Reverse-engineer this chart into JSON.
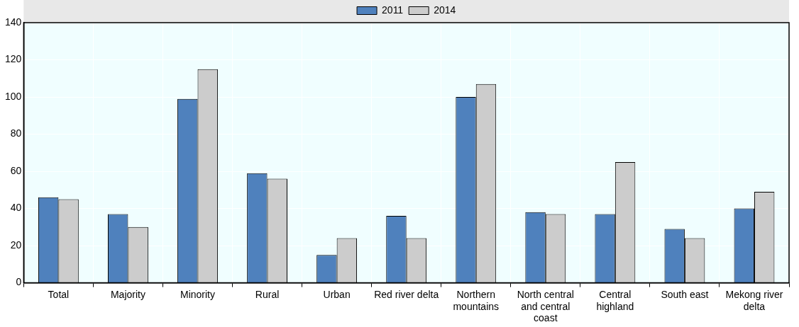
{
  "chart_data": {
    "type": "bar",
    "categories": [
      "Total",
      "Majority",
      "Minority",
      "Rural",
      "Urban",
      "Red river delta",
      "Northern mountains",
      "North central and central coast",
      "Central highland",
      "South east",
      "Mekong river delta"
    ],
    "series": [
      {
        "name": "2011",
        "color": "#4f81bd",
        "values": [
          46,
          37,
          99,
          59,
          15,
          36,
          100,
          38,
          37,
          29,
          40
        ]
      },
      {
        "name": "2014",
        "color": "#cccccc",
        "values": [
          45,
          30,
          115,
          56,
          24,
          24,
          107,
          37,
          65,
          24,
          49
        ]
      }
    ],
    "ylim": [
      0,
      140
    ],
    "yticks": [
      0,
      20,
      40,
      60,
      80,
      100,
      120,
      140
    ],
    "grid": true,
    "legend": "top"
  }
}
